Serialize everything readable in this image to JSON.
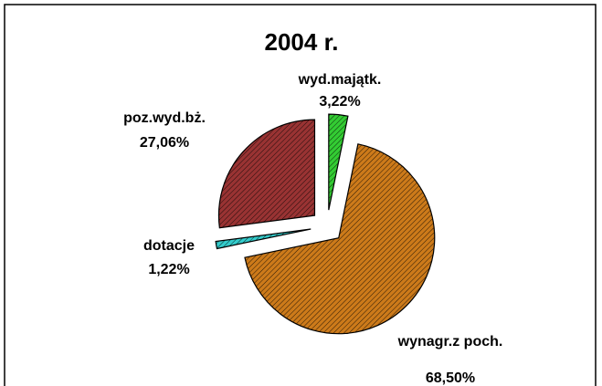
{
  "chart_data": {
    "type": "pie",
    "title": "2004 r.",
    "categories": [
      "wyd.majątk.",
      "wynagr.z poch.",
      "dotacje",
      "poz.wyd.bż."
    ],
    "values": [
      3.22,
      68.5,
      1.22,
      27.06
    ],
    "value_labels": [
      "3,22%",
      "68,50%",
      "1,22%",
      "27,06%"
    ],
    "colors": [
      "#33cc33",
      "#cc7a1a",
      "#33cccc",
      "#993333"
    ]
  }
}
